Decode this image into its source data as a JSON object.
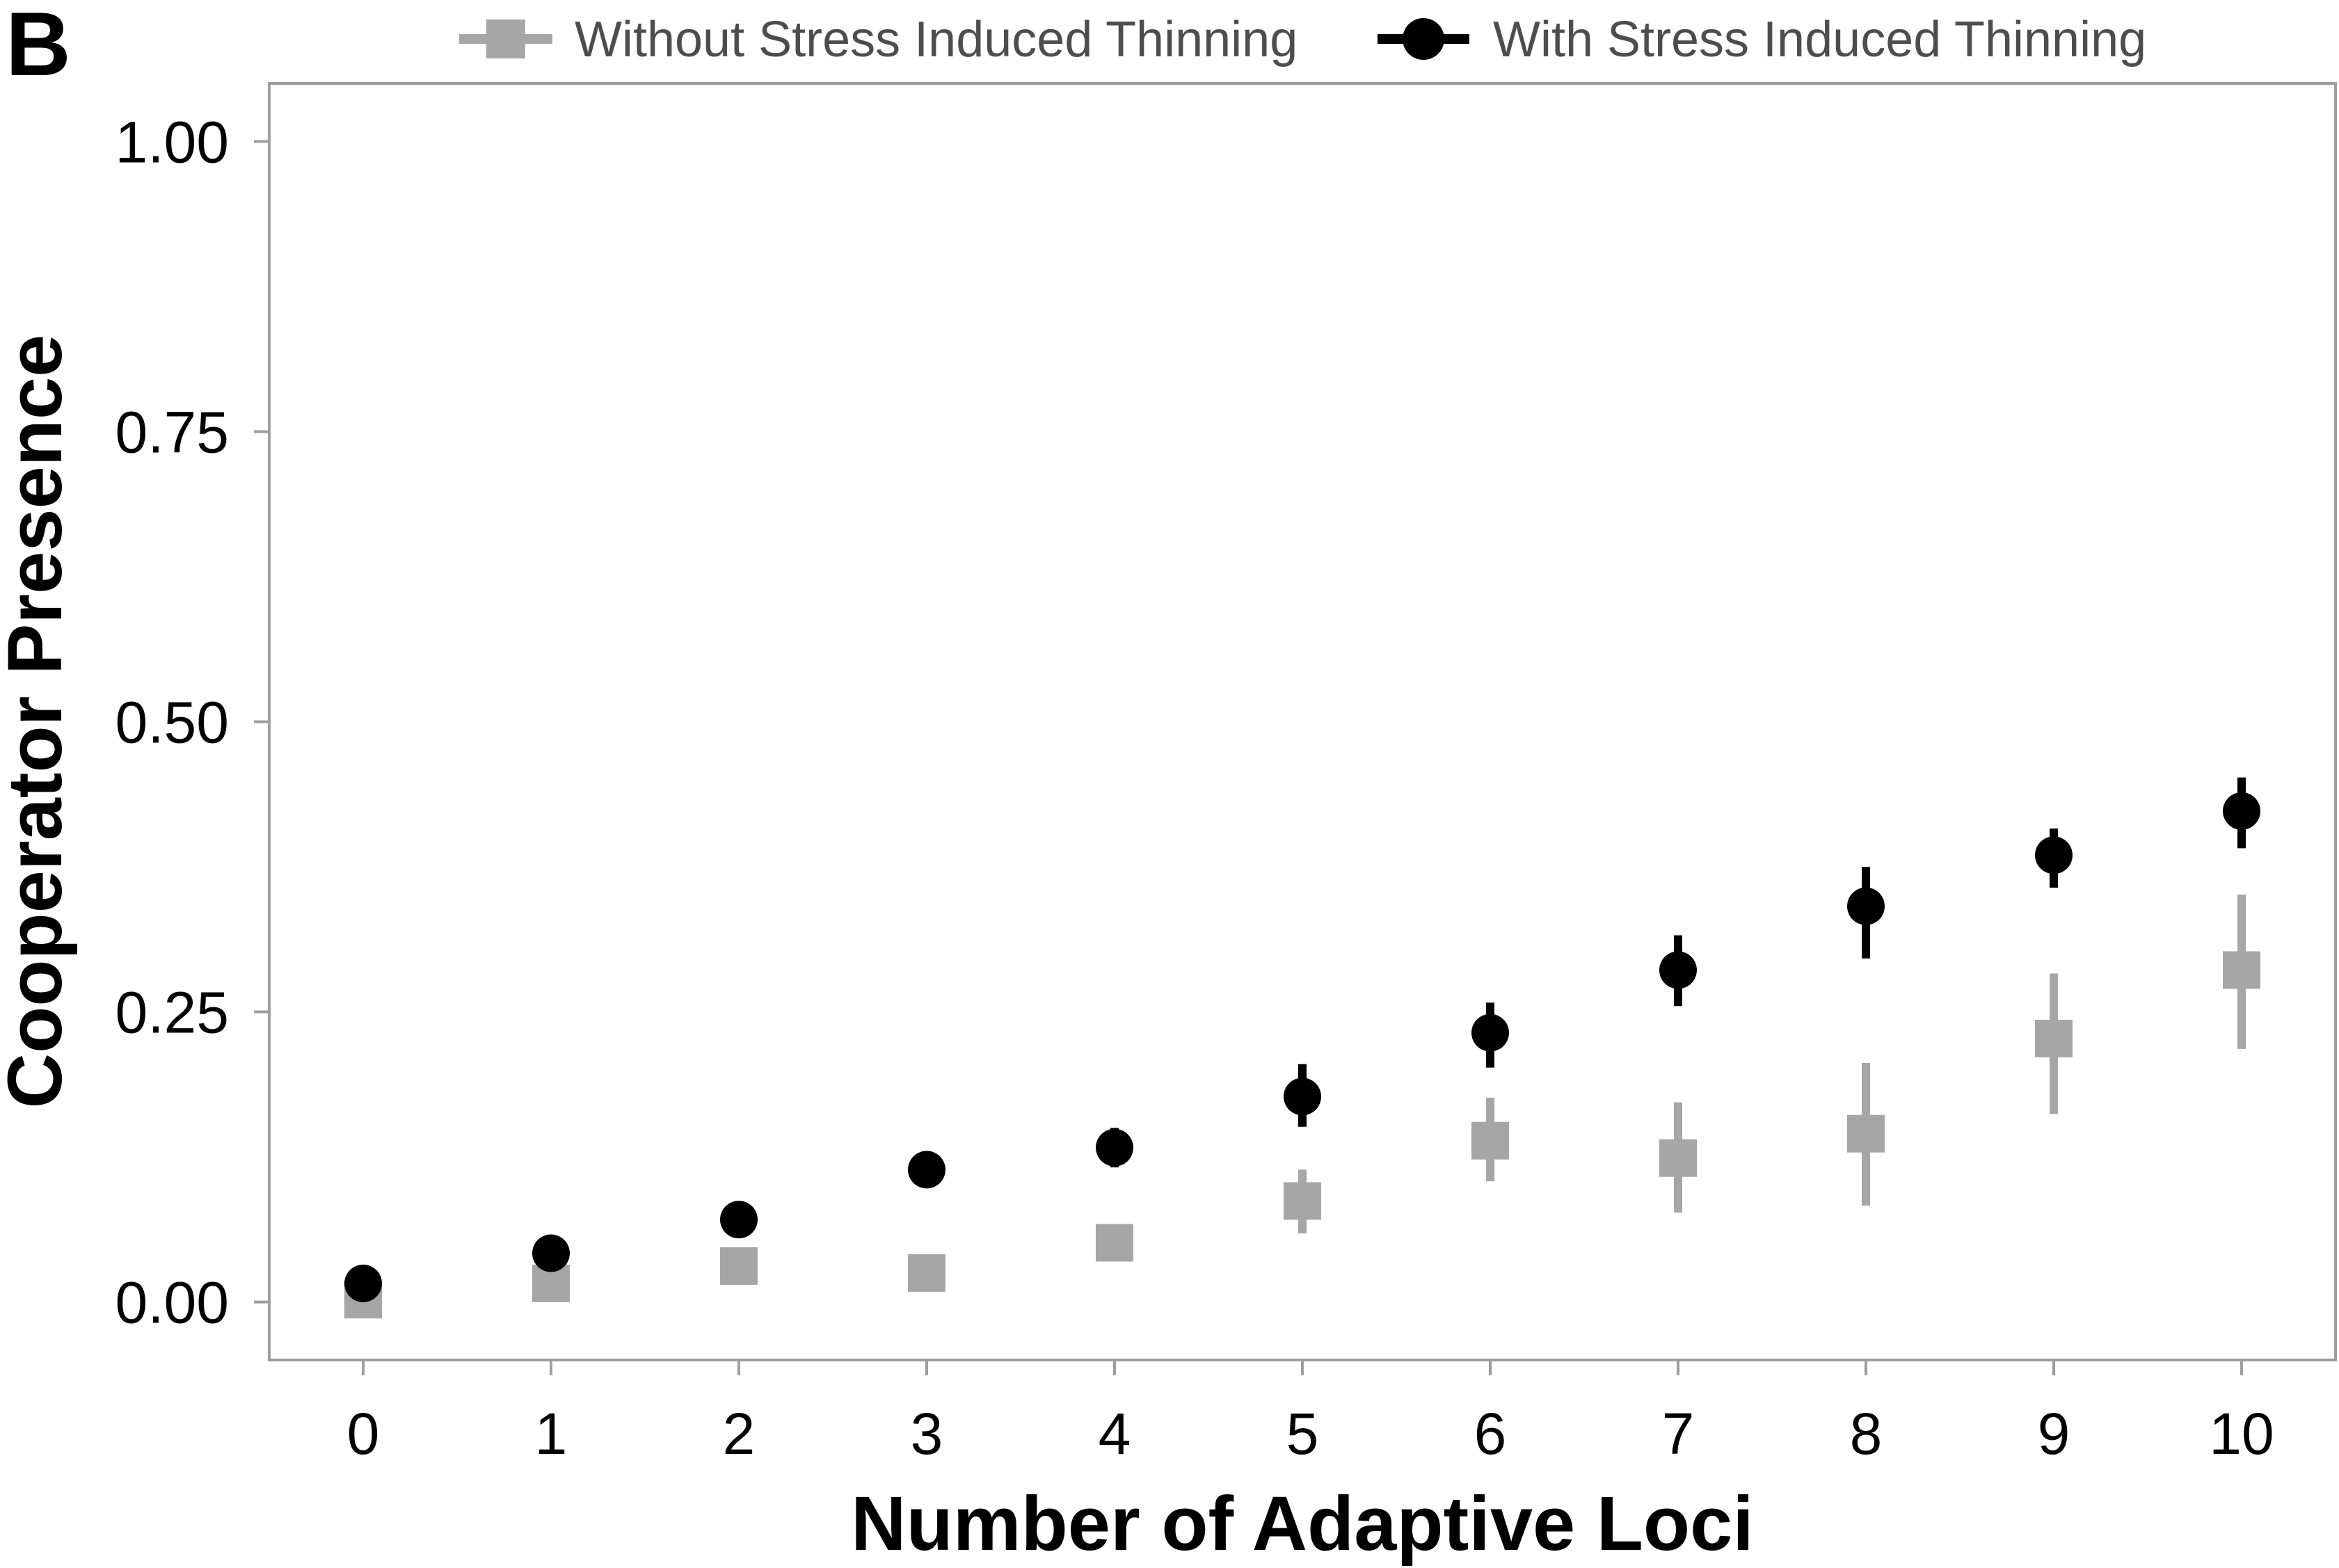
{
  "panel_label": "B",
  "chart_data": {
    "type": "scatter",
    "title": "",
    "xlabel": "Number of Adaptive Loci",
    "ylabel": "Cooperator Presence",
    "xlim": [
      -0.5,
      10.5
    ],
    "ylim": [
      -0.05,
      1.05
    ],
    "x_ticks": [
      0,
      1,
      2,
      3,
      4,
      5,
      6,
      7,
      8,
      9,
      10
    ],
    "x_tick_labels": [
      "0",
      "1",
      "2",
      "3",
      "4",
      "5",
      "6",
      "7",
      "8",
      "9",
      "10"
    ],
    "y_ticks": [
      0,
      0.25,
      0.5,
      0.75,
      1.0
    ],
    "y_tick_labels": [
      "0.00",
      "0.25",
      "0.50",
      "0.75",
      "1.00"
    ],
    "grid": false,
    "legend_position": "top",
    "series": [
      {
        "name": "Without Stress Induced Thinning",
        "marker": "square",
        "color": "#a6a6a6",
        "x": [
          0,
          1,
          2,
          3,
          4,
          5,
          6,
          7,
          8,
          9,
          10
        ],
        "y": [
          0.002,
          0.016,
          0.031,
          0.025,
          0.051,
          0.087,
          0.139,
          0.124,
          0.145,
          0.227,
          0.286
        ],
        "y_low": [
          0.0,
          0.008,
          0.022,
          0.017,
          0.038,
          0.059,
          0.104,
          0.077,
          0.083,
          0.162,
          0.218
        ],
        "y_high": [
          0.006,
          0.024,
          0.04,
          0.033,
          0.064,
          0.114,
          0.176,
          0.172,
          0.206,
          0.283,
          0.351
        ]
      },
      {
        "name": "With Stress Induced Thinning",
        "marker": "circle",
        "color": "#000000",
        "x": [
          0,
          1,
          2,
          3,
          4,
          5,
          6,
          7,
          8,
          9,
          10
        ],
        "y": [
          0.016,
          0.042,
          0.071,
          0.114,
          0.133,
          0.177,
          0.232,
          0.286,
          0.341,
          0.385,
          0.423
        ],
        "y_low": [
          0.01,
          0.032,
          0.058,
          0.1,
          0.116,
          0.151,
          0.202,
          0.255,
          0.296,
          0.357,
          0.391
        ],
        "y_high": [
          0.022,
          0.052,
          0.084,
          0.128,
          0.15,
          0.205,
          0.258,
          0.316,
          0.375,
          0.408,
          0.452
        ]
      }
    ]
  }
}
